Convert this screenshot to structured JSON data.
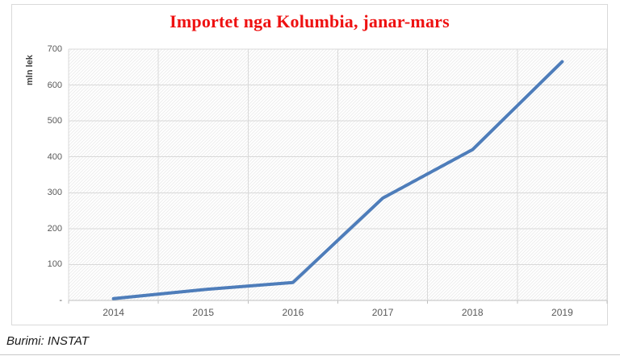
{
  "title": "Importet nga Kolumbia, janar-mars",
  "source_note": "Burimi: INSTAT",
  "colors": {
    "title": "#ee1111",
    "line": "#4e7dba",
    "gridline": "#d9d9d9",
    "axis_line": "#bfbfbf",
    "tick_label": "#595959",
    "hatch": "#ebebeb",
    "chart_border": "#d9d9d9"
  },
  "chart_data": {
    "type": "line",
    "title": "Importet nga Kolumbia, janar-mars",
    "categories": [
      "2014",
      "2015",
      "2016",
      "2017",
      "2018",
      "2019"
    ],
    "values": [
      5,
      30,
      50,
      285,
      420,
      665
    ],
    "series_name": "Importet nga Kolumbia",
    "xlabel": "",
    "ylabel": "mln lek",
    "ylim": [
      0,
      700
    ],
    "y_ticks": [
      700,
      600,
      500,
      400,
      300,
      200,
      100,
      0
    ],
    "y_tick_labels": [
      "700",
      "600",
      "500",
      "400",
      "300",
      "200",
      "100",
      "-"
    ],
    "grid": true,
    "legend": "none",
    "plot_background": "diagonal-hatch"
  }
}
